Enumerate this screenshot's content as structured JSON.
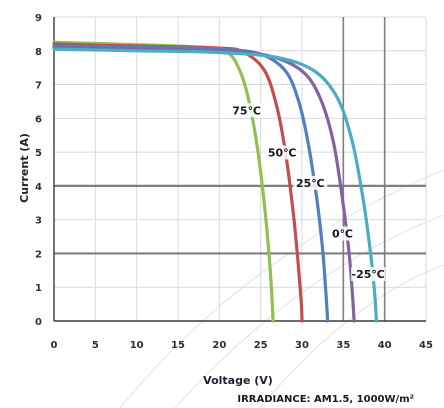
{
  "chart_data": {
    "type": "line",
    "xlabel": "Voltage (V)",
    "ylabel": "Current (A)",
    "xlim": [
      0,
      45
    ],
    "ylim": [
      0,
      9
    ],
    "x_ticks": [
      0,
      5,
      10,
      15,
      20,
      25,
      30,
      35,
      40,
      45
    ],
    "y_ticks": [
      0,
      1,
      2,
      3,
      4,
      5,
      6,
      7,
      8,
      9
    ],
    "grid": {
      "vertical_major_at": [
        35,
        40
      ],
      "horizontal_major_at": [
        2,
        4
      ],
      "vertical_minor_at": [
        5,
        10,
        15,
        20,
        25,
        30,
        45
      ],
      "horizontal_minor_at": [
        1,
        3,
        5,
        6,
        7,
        8,
        9
      ]
    },
    "annotation": "IRRADIANCE:  AM1.5,  1000W/m²",
    "series": [
      {
        "name": "75℃",
        "color": "#92c050",
        "points": [
          [
            0,
            8.25
          ],
          [
            10,
            8.18
          ],
          [
            18,
            8.1
          ],
          [
            21,
            7.95
          ],
          [
            22.5,
            7.4
          ],
          [
            23.5,
            6.6
          ],
          [
            24.5,
            5.3
          ],
          [
            25.3,
            3.8
          ],
          [
            25.9,
            2.3
          ],
          [
            26.3,
            1.0
          ],
          [
            26.5,
            0
          ]
        ]
      },
      {
        "name": "50℃",
        "color": "#c0504d",
        "points": [
          [
            0,
            8.2
          ],
          [
            10,
            8.14
          ],
          [
            20,
            8.08
          ],
          [
            23,
            7.95
          ],
          [
            25.5,
            7.4
          ],
          [
            27,
            6.3
          ],
          [
            28,
            5.0
          ],
          [
            28.9,
            3.3
          ],
          [
            29.5,
            1.8
          ],
          [
            29.9,
            0.6
          ],
          [
            30.0,
            0
          ]
        ]
      },
      {
        "name": "25℃",
        "color": "#4f81bd",
        "points": [
          [
            0,
            8.15
          ],
          [
            10,
            8.1
          ],
          [
            20,
            8.05
          ],
          [
            25,
            7.9
          ],
          [
            28,
            7.4
          ],
          [
            29.6,
            6.5
          ],
          [
            30.8,
            5.2
          ],
          [
            31.8,
            3.6
          ],
          [
            32.5,
            2.1
          ],
          [
            32.9,
            0.8
          ],
          [
            33.1,
            0
          ]
        ]
      },
      {
        "name": "0℃",
        "color": "#8064a2",
        "points": [
          [
            0,
            8.1
          ],
          [
            10,
            8.05
          ],
          [
            20,
            8.0
          ],
          [
            26,
            7.85
          ],
          [
            30,
            7.4
          ],
          [
            32.2,
            6.6
          ],
          [
            33.8,
            5.3
          ],
          [
            34.9,
            3.6
          ],
          [
            35.7,
            2.0
          ],
          [
            36.1,
            0.8
          ],
          [
            36.3,
            0
          ]
        ]
      },
      {
        "name": "-25℃",
        "color": "#4bacc6",
        "points": [
          [
            0,
            8.05
          ],
          [
            10,
            8.0
          ],
          [
            20,
            7.95
          ],
          [
            27,
            7.8
          ],
          [
            31.5,
            7.4
          ],
          [
            34.3,
            6.6
          ],
          [
            36.1,
            5.3
          ],
          [
            37.4,
            3.6
          ],
          [
            38.3,
            2.0
          ],
          [
            38.8,
            0.8
          ],
          [
            39.0,
            0
          ]
        ]
      }
    ],
    "curve_labels": [
      {
        "text": "75℃",
        "at": [
          23.3,
          6.15
        ]
      },
      {
        "text": "50℃",
        "at": [
          27.6,
          4.9
        ]
      },
      {
        "text": "25℃",
        "at": [
          31.0,
          4.0
        ]
      },
      {
        "text": "0℃",
        "at": [
          34.9,
          2.5
        ]
      },
      {
        "text": "-25℃",
        "at": [
          38.0,
          1.3
        ]
      }
    ]
  }
}
